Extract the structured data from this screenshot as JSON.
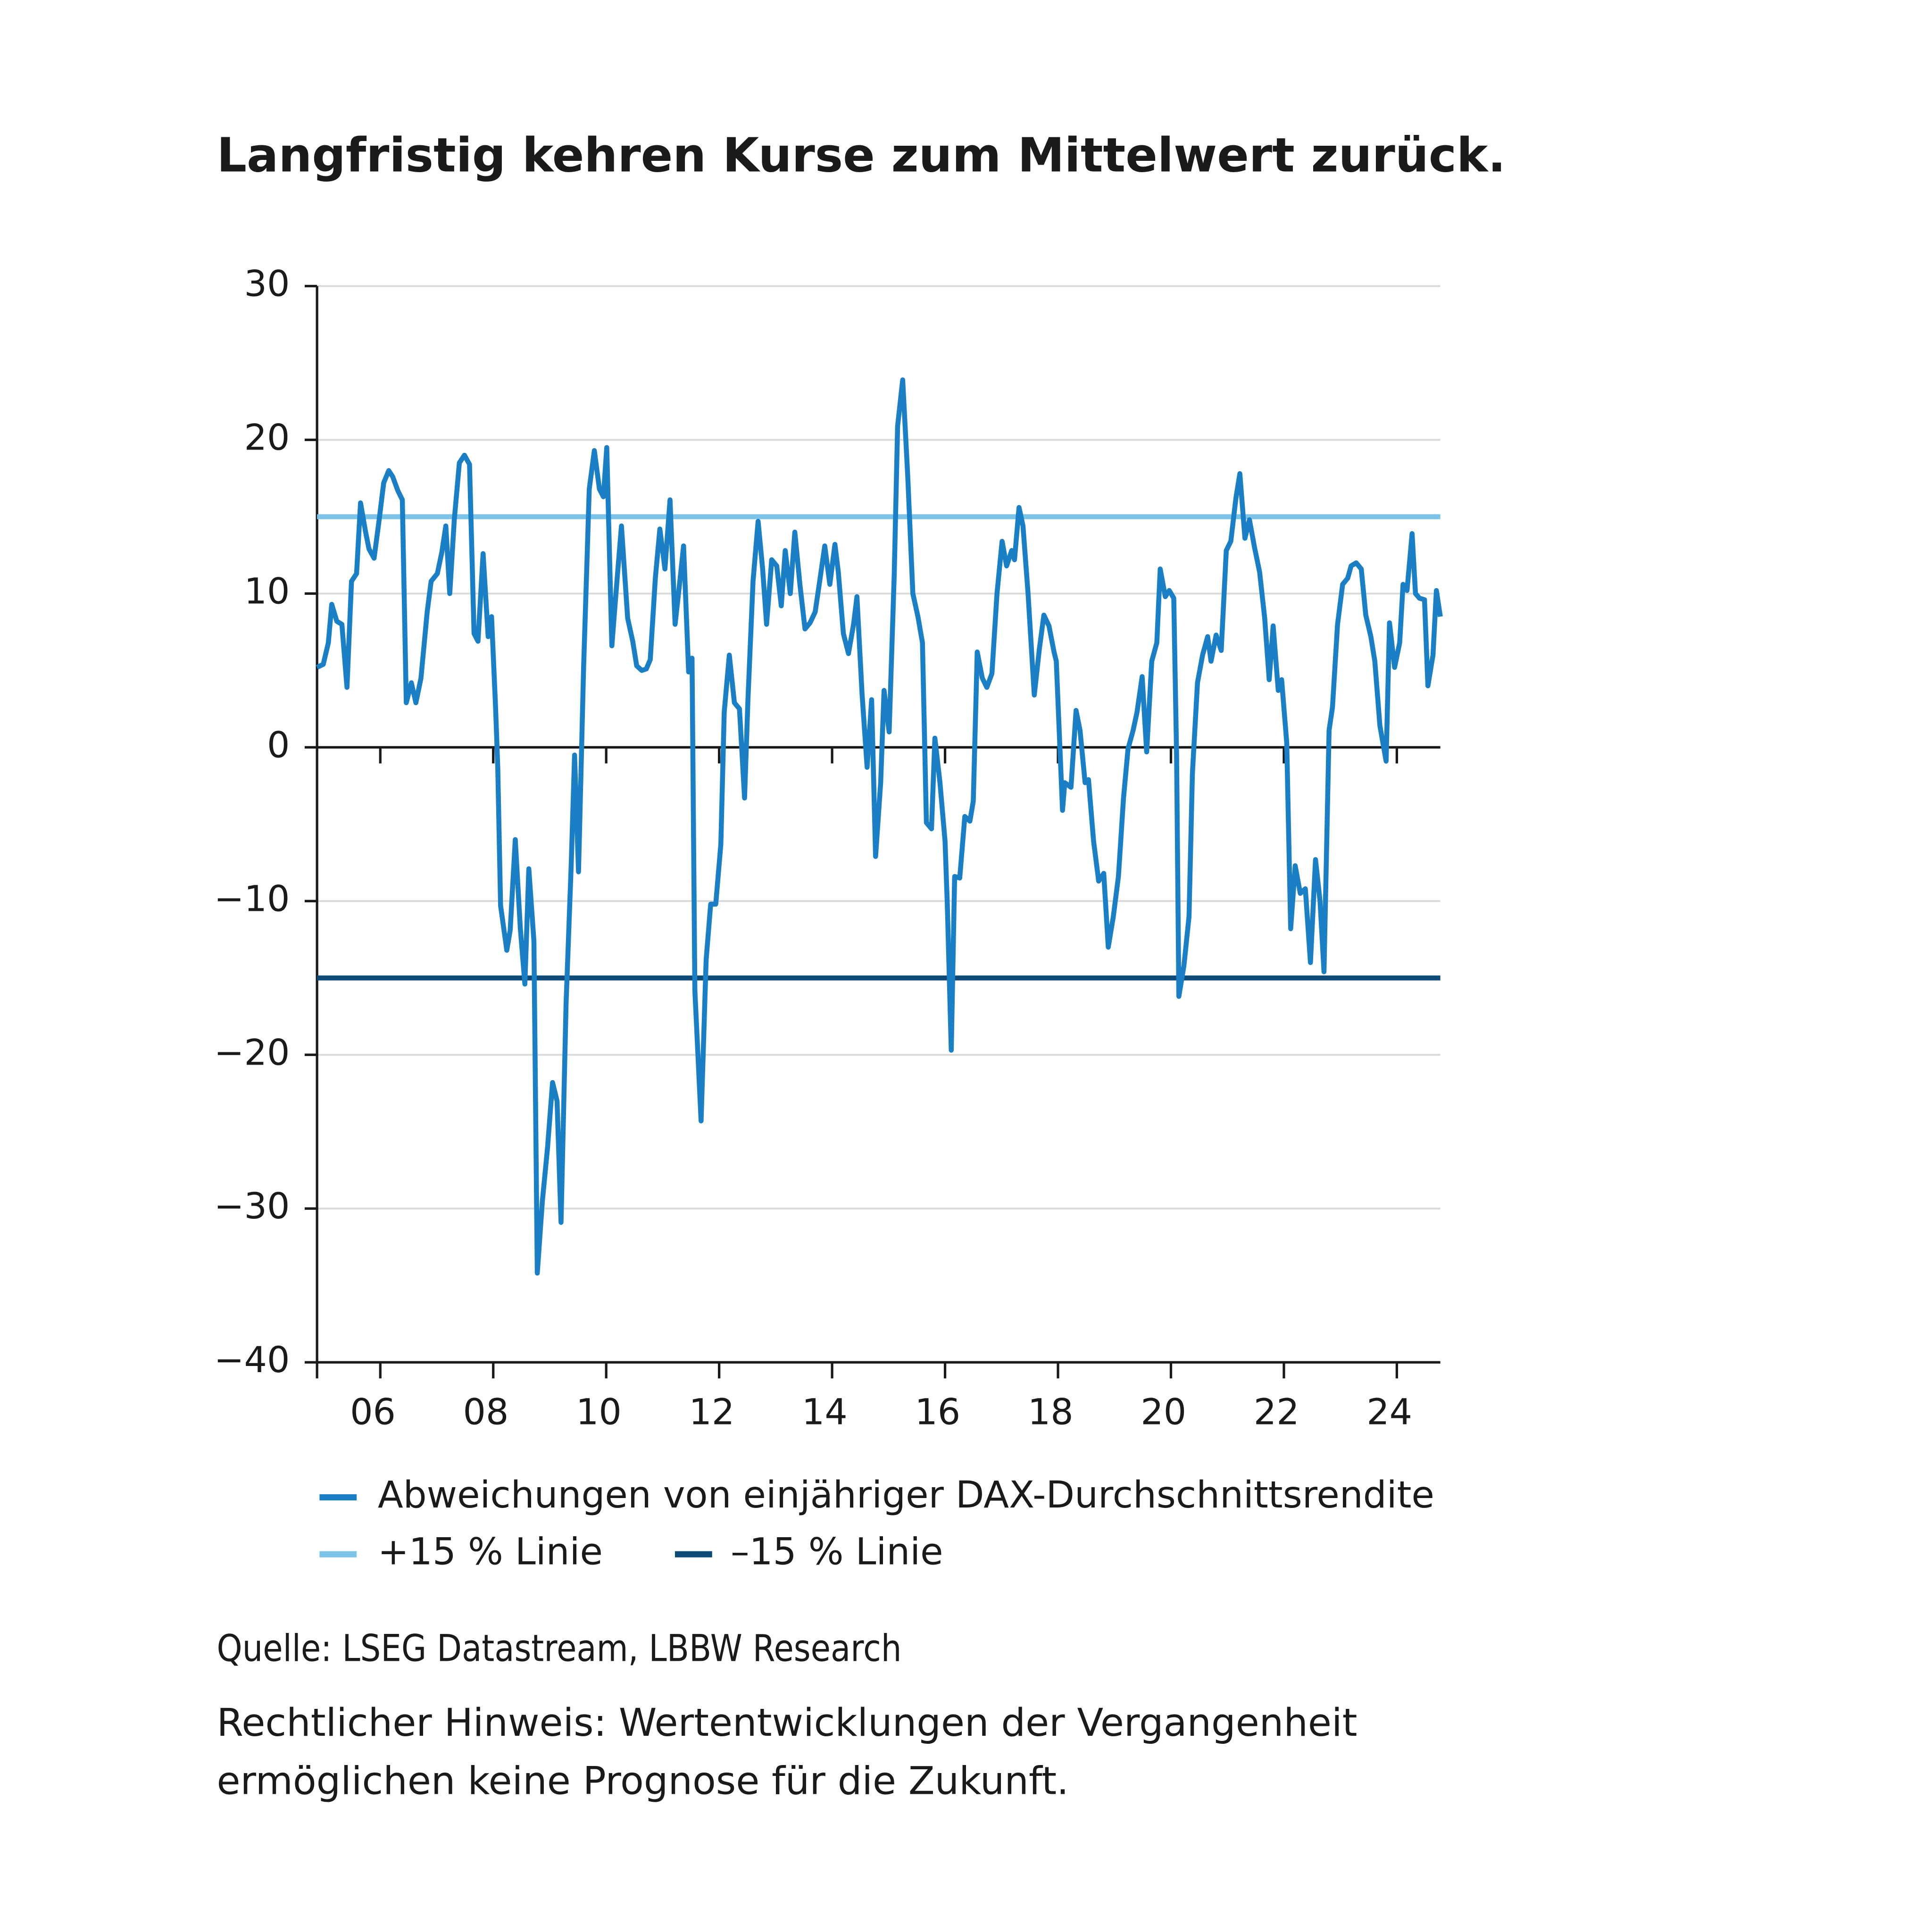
{
  "chart_data": {
    "type": "line",
    "title": "Langfristig kehren Kurse zum Mittelwert zurück.",
    "xlim": [
      2004.88,
      2024.77
    ],
    "xticks": [
      {
        "value": 2006,
        "label": "06"
      },
      {
        "value": 2008,
        "label": "08"
      },
      {
        "value": 2010,
        "label": "10"
      },
      {
        "value": 2012,
        "label": "12"
      },
      {
        "value": 2014,
        "label": "14"
      },
      {
        "value": 2016,
        "label": "16"
      },
      {
        "value": 2018,
        "label": "18"
      },
      {
        "value": 2020,
        "label": "20"
      },
      {
        "value": 2022,
        "label": "22"
      },
      {
        "value": 2024,
        "label": "24"
      }
    ],
    "ylim": [
      -40,
      30
    ],
    "yticks": [
      {
        "value": -40,
        "label": "−40"
      },
      {
        "value": -30,
        "label": "−30"
      },
      {
        "value": -20,
        "label": "−20"
      },
      {
        "value": -10,
        "label": "−10"
      },
      0,
      10,
      20,
      30
    ],
    "grid": true,
    "series": [
      {
        "name": "Abweichungen von einjähriger DAX-Durchschnittsrendite",
        "color": "#1a7fc4",
        "x": [
          2004.88,
          2004.99,
          2005.08,
          2005.14,
          2005.23,
          2005.32,
          2005.41,
          2005.49,
          2005.58,
          2005.65,
          2005.74,
          2005.8,
          2005.89,
          2005.98,
          2006.06,
          2006.15,
          2006.22,
          2006.31,
          2006.39,
          2006.46,
          2006.55,
          2006.63,
          2006.72,
          2006.83,
          2006.9,
          2007.01,
          2007.09,
          2007.16,
          2007.23,
          2007.31,
          2007.4,
          2007.49,
          2007.58,
          2007.66,
          2007.73,
          2007.82,
          2007.91,
          2007.97,
          2008.04,
          2008.08,
          2008.13,
          2008.24,
          2008.3,
          2008.39,
          2008.48,
          2008.56,
          2008.63,
          2008.72,
          2008.78,
          2008.87,
          2008.96,
          2009.05,
          2009.13,
          2009.2,
          2009.29,
          2009.38,
          2009.44,
          2009.51,
          2009.6,
          2009.7,
          2009.79,
          2009.88,
          2009.95,
          2010.01,
          2010.1,
          2010.19,
          2010.27,
          2010.38,
          2010.47,
          2010.54,
          2010.63,
          2010.71,
          2010.78,
          2010.87,
          2010.95,
          2011.04,
          2011.13,
          2011.22,
          2011.31,
          2011.37,
          2011.46,
          2011.52,
          2011.57,
          2011.68,
          2011.77,
          2011.85,
          2011.94,
          2012.03,
          2012.09,
          2012.18,
          2012.27,
          2012.36,
          2012.45,
          2012.51,
          2012.6,
          2012.69,
          2012.77,
          2012.84,
          2012.93,
          2013.02,
          2013.1,
          2013.17,
          2013.26,
          2013.34,
          2013.43,
          2013.52,
          2013.61,
          2013.7,
          2013.78,
          2013.87,
          2013.96,
          2014.05,
          2014.11,
          2014.2,
          2014.29,
          2014.38,
          2014.44,
          2014.53,
          2014.62,
          2014.7,
          2014.77,
          2014.86,
          2014.92,
          2015.01,
          2015.1,
          2015.16,
          2015.25,
          2015.34,
          2015.43,
          2015.52,
          2015.6,
          2015.67,
          2015.76,
          2015.82,
          2015.91,
          2016.0,
          2016.04,
          2016.11,
          2016.17,
          2016.26,
          2016.35,
          2016.44,
          2016.5,
          2016.57,
          2016.66,
          2016.74,
          2016.83,
          2016.92,
          2017.01,
          2017.09,
          2017.18,
          2017.23,
          2017.31,
          2017.38,
          2017.47,
          2017.58,
          2017.67,
          2017.75,
          2017.84,
          2017.93,
          2017.97,
          2018.08,
          2018.12,
          2018.23,
          2018.32,
          2018.39,
          2018.48,
          2018.54,
          2018.63,
          2018.72,
          2018.81,
          2018.89,
          2018.98,
          2019.07,
          2019.16,
          2019.24,
          2019.33,
          2019.4,
          2019.49,
          2019.57,
          2019.66,
          2019.75,
          2019.81,
          2019.9,
          2019.97,
          2020.05,
          2020.1,
          2020.14,
          2020.23,
          2020.32,
          2020.38,
          2020.47,
          2020.56,
          2020.65,
          2020.71,
          2020.8,
          2020.89,
          2020.98,
          2021.06,
          2021.15,
          2021.22,
          2021.31,
          2021.39,
          2021.48,
          2021.57,
          2021.66,
          2021.74,
          2021.81,
          2021.9,
          2021.96,
          2022.05,
          2022.12,
          2022.2,
          2022.29,
          2022.38,
          2022.47,
          2022.56,
          2022.64,
          2022.71,
          2022.8,
          2022.86,
          2022.95,
          2023.04,
          2023.13,
          2023.19,
          2023.28,
          2023.37,
          2023.45,
          2023.54,
          2023.61,
          2023.7,
          2023.81,
          2023.87,
          2023.96,
          2024.05,
          2024.11,
          2024.18,
          2024.27,
          2024.33,
          2024.4,
          2024.49,
          2024.55,
          2024.64,
          2024.7,
          2024.77
        ],
        "values": [
          5.2,
          5.4,
          6.8,
          9.3,
          8.2,
          8.0,
          3.9,
          10.8,
          11.3,
          15.9,
          14.0,
          12.9,
          12.3,
          14.8,
          17.2,
          18.0,
          17.6,
          16.7,
          16.1,
          2.9,
          4.2,
          2.9,
          4.5,
          8.8,
          10.8,
          11.3,
          12.7,
          14.4,
          10.0,
          14.8,
          18.5,
          19.0,
          18.4,
          7.4,
          6.9,
          12.6,
          7.2,
          8.5,
          2.7,
          -1.3,
          -10.3,
          -13.2,
          -11.9,
          -6.0,
          -11.8,
          -15.4,
          -7.9,
          -12.6,
          -34.2,
          -29.5,
          -26.1,
          -21.8,
          -23.0,
          -30.9,
          -16.6,
          -7.7,
          -0.5,
          -8.1,
          5.2,
          16.8,
          19.3,
          16.8,
          16.3,
          19.5,
          6.6,
          10.8,
          14.4,
          8.4,
          6.9,
          5.3,
          5.0,
          5.1,
          5.7,
          11.0,
          14.2,
          11.6,
          16.1,
          8.0,
          11.0,
          13.1,
          4.9,
          5.8,
          -15.8,
          -24.3,
          -13.8,
          -10.2,
          -10.2,
          -6.3,
          2.3,
          6.0,
          2.9,
          2.5,
          -3.3,
          3.1,
          10.8,
          14.7,
          11.6,
          8.0,
          12.2,
          11.8,
          9.2,
          12.8,
          10.0,
          14.0,
          10.6,
          7.7,
          8.1,
          8.8,
          10.8,
          13.1,
          10.6,
          13.2,
          11.4,
          7.4,
          6.1,
          8.0,
          9.8,
          3.5,
          -1.3,
          3.1,
          -7.1,
          -2.3,
          3.7,
          1.0,
          11.2,
          20.9,
          23.9,
          17.6,
          10.0,
          8.5,
          6.8,
          -4.9,
          -5.3,
          0.6,
          -2.3,
          -6.1,
          -10.2,
          -19.7,
          -8.4,
          -8.5,
          -4.5,
          -4.8,
          -3.5,
          6.2,
          4.5,
          3.9,
          4.8,
          10.0,
          13.4,
          11.8,
          12.8,
          12.2,
          15.6,
          14.4,
          10.0,
          3.4,
          6.4,
          8.6,
          7.9,
          6.2,
          5.6,
          -4.1,
          -2.3,
          -2.6,
          2.4,
          1.1,
          -2.3,
          -2.1,
          -6.1,
          -8.7,
          -8.2,
          -13.0,
          -11.0,
          -8.4,
          -3.3,
          -0.1,
          1.1,
          2.3,
          4.6,
          -0.3,
          5.6,
          6.8,
          11.6,
          9.8,
          10.2,
          9.7,
          -0.5,
          -16.2,
          -14.2,
          -11.0,
          -1.7,
          4.2,
          6.0,
          7.2,
          5.6,
          7.3,
          6.3,
          12.8,
          13.4,
          16.2,
          17.8,
          13.6,
          14.8,
          13.0,
          11.4,
          8.4,
          4.4,
          7.9,
          3.7,
          4.4,
          0.3,
          -11.8,
          -7.7,
          -9.5,
          -9.2,
          -14.0,
          -7.3,
          -10.0,
          -14.6,
          1.1,
          2.6,
          8.0,
          10.6,
          11.0,
          11.8,
          12.0,
          11.6,
          8.6,
          7.2,
          5.6,
          1.4,
          -0.9,
          8.1,
          5.2,
          6.8,
          10.6,
          10.2,
          13.9,
          10.0,
          9.7,
          9.6,
          4.0,
          6.0,
          10.2,
          8.5
        ]
      }
    ],
    "reference_lines": [
      {
        "name": "+15 % Linie",
        "value": 15,
        "color": "#7cc4ea"
      },
      {
        "name": "–15 % Linie",
        "value": -15,
        "color": "#0e4a78"
      }
    ],
    "source": "Quelle: LSEG Datastream, LBBW Research",
    "note": [
      "Rechtlicher Hinweis: Wertentwicklungen der Vergangenheit",
      "ermöglichen keine Prognose für die Zukunft."
    ]
  }
}
